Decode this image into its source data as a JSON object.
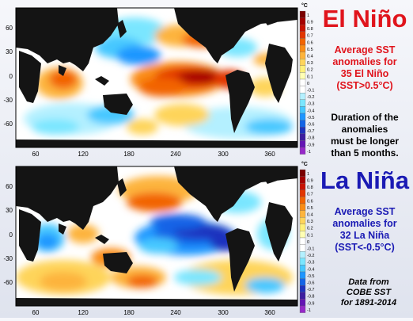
{
  "maps": [
    {
      "id": "el-nino",
      "lat_ticks": [
        "60",
        "30",
        "0",
        "-30",
        "-60"
      ],
      "lon_ticks": [
        "60",
        "120",
        "180",
        "240",
        "300",
        "360"
      ],
      "colorbar_unit": "°C",
      "colorbar_ticks": [
        "1",
        "0.9",
        "0.8",
        "0.7",
        "0.6",
        "0.5",
        "0.4",
        "0.3",
        "0.2",
        "0.1",
        "0",
        "-0.1",
        "-0.2",
        "-0.3",
        "-0.4",
        "-0.5",
        "-0.6",
        "-0.7",
        "-0.8",
        "-0.9",
        "-1"
      ]
    },
    {
      "id": "la-nina",
      "lat_ticks": [
        "60",
        "30",
        "0",
        "-30",
        "-60"
      ],
      "lon_ticks": [
        "60",
        "120",
        "180",
        "240",
        "300",
        "360"
      ],
      "colorbar_unit": "°C",
      "colorbar_ticks": [
        "1",
        "0.9",
        "0.8",
        "0.7",
        "0.6",
        "0.5",
        "0.4",
        "0.3",
        "0.2",
        "0.1",
        "0",
        "-0.1",
        "-0.2",
        "-0.3",
        "-0.4",
        "-0.5",
        "-0.6",
        "-0.7",
        "-0.8",
        "-0.9",
        "-1"
      ]
    }
  ],
  "colorbar_colors": [
    "#7a0000",
    "#a50000",
    "#c81000",
    "#e23600",
    "#f26400",
    "#fa8c14",
    "#fdb43c",
    "#fed45a",
    "#fff07a",
    "#ffffb4",
    "#ffffff",
    "#ffffff",
    "#b4f0ff",
    "#7ae6ff",
    "#46c8ff",
    "#1e96ff",
    "#1464e6",
    "#1e32be",
    "#3c1ea0",
    "#6414b4",
    "#9628c8"
  ],
  "el_nino": {
    "title": "El Niño",
    "description_lines": [
      "Average SST",
      "anomalies for",
      "35 El Niño",
      "(SST>0.5°C)"
    ]
  },
  "duration_note_lines": [
    "Duration of the",
    "anomalies",
    "must be longer",
    "than 5 months."
  ],
  "la_nina": {
    "title": "La Niña",
    "description_lines": [
      "Average SST",
      "anomalies for",
      "32 La Niña",
      "(SST<-0.5°C)"
    ]
  },
  "source_lines": [
    "Data from",
    "COBE SST",
    "for 1891-2014"
  ]
}
